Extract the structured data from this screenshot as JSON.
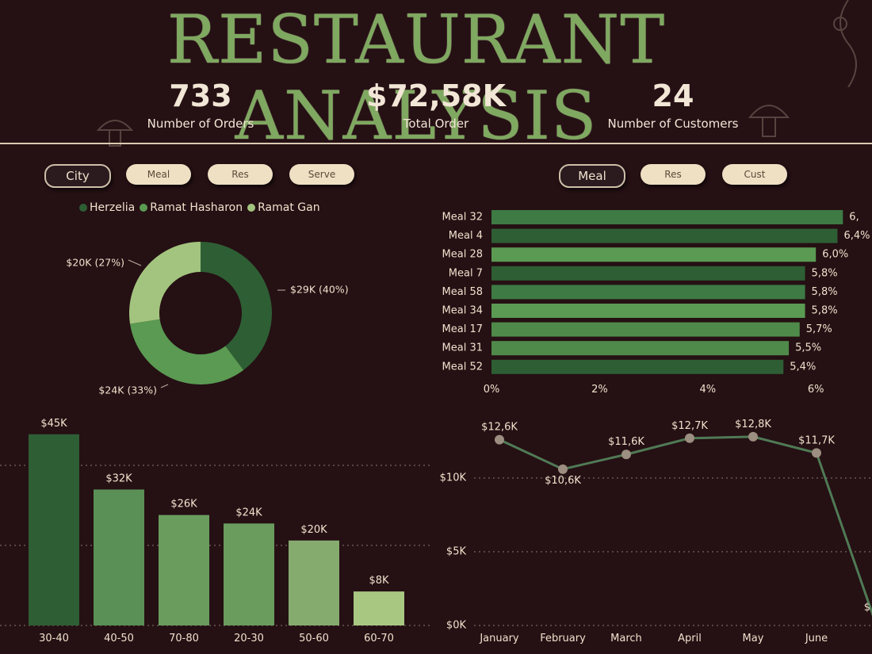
{
  "header": {
    "title": "RESTAURANT ANALYSIS"
  },
  "kpis": [
    {
      "value": "733",
      "label": "Number of Orders"
    },
    {
      "value": "$72,58K",
      "label": "Total Order"
    },
    {
      "value": "24",
      "label": "Number of Customers"
    }
  ],
  "left_filters": [
    {
      "label": "City",
      "active": true
    },
    {
      "label": "Meal",
      "active": false
    },
    {
      "label": "Res",
      "active": false
    },
    {
      "label": "Serve",
      "active": false
    }
  ],
  "right_filters": [
    {
      "label": "Meal",
      "active": true
    },
    {
      "label": "Res",
      "active": false
    },
    {
      "label": "Cust",
      "active": false
    }
  ],
  "colors": {
    "bg": "#251014",
    "title": "#7fa860",
    "green_dark": "#2e5e34",
    "green_mid": "#4f8a4a",
    "green_light": "#a3c47e",
    "line": "#4f7a55",
    "marker": "#9c8e80"
  },
  "chart_data": [
    {
      "type": "pie",
      "subtype": "donut",
      "legend_position": "top",
      "slices": [
        {
          "name": "Herzelia",
          "value": 29,
          "label": "$29K (40%)",
          "color": "#2e5e34"
        },
        {
          "name": "Ramat Hasharon",
          "value": 24,
          "label": "$24K (33%)",
          "color": "#5a9a52"
        },
        {
          "name": "Ramat Gan",
          "value": 20,
          "label": "$20K (27%)",
          "color": "#a3c47e"
        }
      ]
    },
    {
      "type": "bar",
      "orientation": "horizontal",
      "categories": [
        "Meal 32",
        "Meal 4",
        "Meal 28",
        "Meal 7",
        "Meal 58",
        "Meal 34",
        "Meal 17",
        "Meal 31",
        "Meal 52"
      ],
      "values": [
        6.5,
        6.4,
        6.0,
        5.8,
        5.8,
        5.8,
        5.7,
        5.5,
        5.4
      ],
      "labels": [
        "6,",
        "6,4%",
        "6,0%",
        "5,8%",
        "5,8%",
        "5,8%",
        "5,7%",
        "5,5%",
        "5,4%"
      ],
      "colors": [
        "#3e7a44",
        "#2e5e34",
        "#5a9a52",
        "#2e5e34",
        "#3e7a44",
        "#5a9a52",
        "#4f8a4a",
        "#4f8a4a",
        "#2e5e34"
      ],
      "xticks": [
        "0%",
        "2%",
        "4%",
        "6%"
      ],
      "xlim": [
        0,
        6.6
      ]
    },
    {
      "type": "bar",
      "categories": [
        "30-40",
        "40-50",
        "70-80",
        "20-30",
        "50-60",
        "60-70"
      ],
      "values": [
        45,
        32,
        26,
        24,
        20,
        8
      ],
      "labels": [
        "$45K",
        "$32K",
        "$26K",
        "$24K",
        "$20K",
        "$8K"
      ],
      "colors": [
        "#2e5e34",
        "#5a8f55",
        "#6a9c5e",
        "#6a9c5e",
        "#86ab6e",
        "#a8c882"
      ],
      "ylim": [
        0,
        48
      ],
      "grid": true
    },
    {
      "type": "line",
      "x": [
        "January",
        "February",
        "March",
        "April",
        "May",
        "June"
      ],
      "y": [
        12.6,
        10.6,
        11.6,
        12.7,
        12.8,
        11.7
      ],
      "labels": [
        "$12,6K",
        "$10,6K",
        "$11,6K",
        "$12,7K",
        "$12,8K",
        "$11,7K"
      ],
      "partial_last_label": "$",
      "yticks": [
        "$0K",
        "$5K",
        "$10K"
      ],
      "ylim": [
        0,
        14.5
      ],
      "grid": true
    }
  ]
}
